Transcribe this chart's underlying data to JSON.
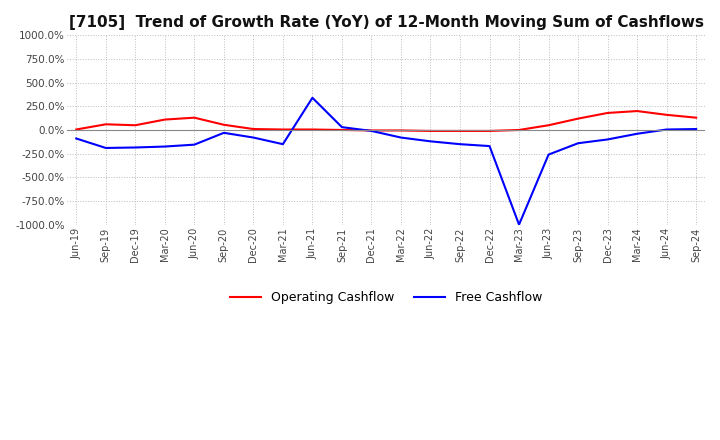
{
  "title": "[7105]  Trend of Growth Rate (YoY) of 12-Month Moving Sum of Cashflows",
  "title_fontsize": 11,
  "background_color": "#ffffff",
  "grid_color": "#bbbbbb",
  "ylim": [
    -1000,
    1000
  ],
  "yticks": [
    -1000,
    -750,
    -500,
    -250,
    0,
    250,
    500,
    750,
    1000
  ],
  "ytick_labels": [
    "-1000.0%",
    "-750.0%",
    "-500.0%",
    "-250.0%",
    "0.0%",
    "250.0%",
    "500.0%",
    "750.0%",
    "1000.0%"
  ],
  "x_labels": [
    "Jun-19",
    "Sep-19",
    "Dec-19",
    "Mar-20",
    "Jun-20",
    "Sep-20",
    "Dec-20",
    "Mar-21",
    "Jun-21",
    "Sep-21",
    "Dec-21",
    "Mar-22",
    "Jun-22",
    "Sep-22",
    "Dec-22",
    "Mar-23",
    "Jun-23",
    "Sep-23",
    "Dec-23",
    "Mar-24",
    "Jun-24",
    "Sep-24"
  ],
  "operating_cashflow": [
    5,
    60,
    50,
    110,
    130,
    55,
    10,
    5,
    5,
    0,
    -5,
    -5,
    -10,
    -10,
    -10,
    0,
    50,
    120,
    180,
    200,
    160,
    130
  ],
  "free_cashflow": [
    -90,
    -190,
    -185,
    -175,
    -155,
    -30,
    -80,
    -150,
    340,
    30,
    -10,
    -80,
    -120,
    -150,
    -170,
    -1000,
    -260,
    -140,
    -100,
    -40,
    5,
    10
  ],
  "operating_color": "#ff0000",
  "free_color": "#0000ff",
  "legend_labels": [
    "Operating Cashflow",
    "Free Cashflow"
  ]
}
